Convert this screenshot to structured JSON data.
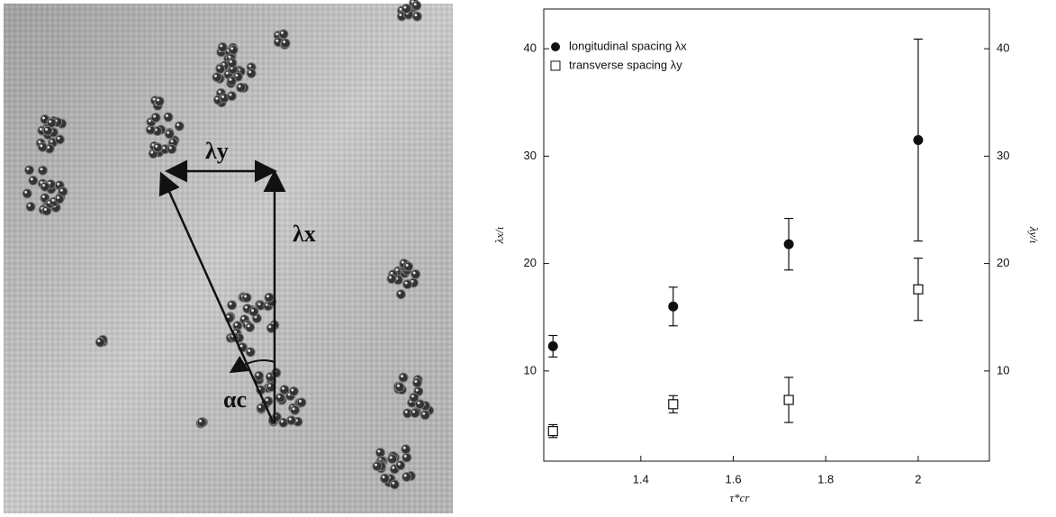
{
  "photo": {
    "labels": [
      "λy",
      "λx",
      "αc"
    ]
  },
  "chart_data": {
    "type": "scatter",
    "xlabel": "τ*cr",
    "ylabel": "λx/ι",
    "y2label": "λy/ι",
    "x": [
      1.21,
      1.47,
      1.72,
      2.0
    ],
    "series": [
      {
        "name": "longitudinal spacing λx",
        "color": "#111111",
        "marker": "circle",
        "values": [
          12.3,
          16.0,
          21.8,
          31.5
        ],
        "errors": [
          1.0,
          1.8,
          2.4,
          9.4
        ]
      },
      {
        "name": "transverse spacing λy",
        "color": "#111111",
        "marker": "square",
        "axis": "y2",
        "values": [
          4.4,
          6.9,
          7.3,
          17.6
        ],
        "errors": [
          0.6,
          0.8,
          2.1,
          2.9
        ]
      }
    ],
    "xlim": [
      1.19,
      2.154
    ],
    "xticks": [
      1.4,
      1.6,
      1.8,
      2.0
    ],
    "ylim": [
      1.6,
      43.7
    ],
    "yticks": [
      10,
      20,
      30,
      40
    ],
    "y2lim": [
      1.6,
      43.7
    ],
    "y2ticks": [
      10,
      20,
      30,
      40
    ],
    "legend": "upper left",
    "grid": false
  }
}
